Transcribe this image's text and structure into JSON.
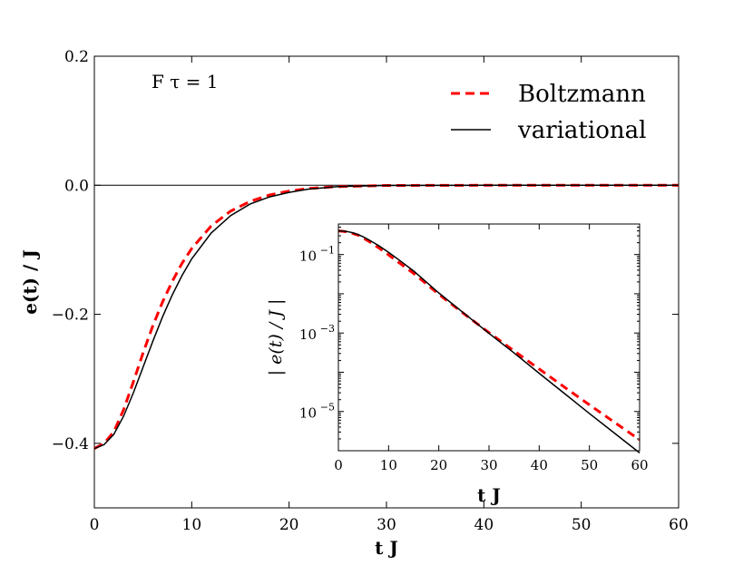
{
  "chart_data": [
    {
      "type": "line",
      "title": "",
      "annotation": "F τ = 1",
      "xlabel": "t J",
      "ylabel": "e(t) / J",
      "xlim": [
        0,
        60
      ],
      "ylim": [
        -0.5,
        0.2
      ],
      "xticks": [
        "0",
        "10",
        "20",
        "30",
        "40",
        "50",
        "60"
      ],
      "yticks": [
        "0.2",
        "0.0",
        "−0.2",
        "−0.4"
      ],
      "yticks_values": [
        0.2,
        0.0,
        -0.2,
        -0.4
      ],
      "reference_line_y": 0.0,
      "legend_position": "top-right",
      "grid": false,
      "series": [
        {
          "name": "Boltzmann",
          "style": "dashed",
          "color": "#ff0000",
          "x": [
            0,
            1,
            2,
            3,
            4,
            5,
            6,
            7,
            8,
            9,
            10,
            12,
            14,
            16,
            18,
            20,
            22,
            25,
            30,
            40,
            60
          ],
          "y": [
            -0.408,
            -0.4,
            -0.382,
            -0.348,
            -0.305,
            -0.26,
            -0.218,
            -0.181,
            -0.149,
            -0.121,
            -0.098,
            -0.063,
            -0.04,
            -0.025,
            -0.015,
            -0.009,
            -0.005,
            -0.002,
            -0.0003,
            0.0,
            0.0
          ]
        },
        {
          "name": "variational",
          "style": "solid",
          "color": "#000000",
          "x": [
            0,
            1,
            2,
            3,
            4,
            5,
            6,
            7,
            8,
            9,
            10,
            12,
            14,
            16,
            18,
            20,
            22,
            25,
            30,
            40,
            60
          ],
          "y": [
            -0.408,
            -0.402,
            -0.386,
            -0.358,
            -0.322,
            -0.282,
            -0.242,
            -0.204,
            -0.17,
            -0.14,
            -0.114,
            -0.074,
            -0.047,
            -0.029,
            -0.018,
            -0.011,
            -0.006,
            -0.002,
            -0.0003,
            0.0,
            0.0
          ]
        }
      ]
    },
    {
      "type": "line",
      "title": "",
      "xlabel": "t J",
      "ylabel": "| e(t) / J |",
      "xscale": "linear",
      "yscale": "log",
      "xlim": [
        0,
        60
      ],
      "ylim": [
        1e-06,
        0.6
      ],
      "xticks": [
        "0",
        "10",
        "20",
        "30",
        "40",
        "50",
        "60"
      ],
      "yticks": [
        "10",
        "10",
        "10"
      ],
      "yticks_exponents": [
        "−1",
        "−3",
        "−5"
      ],
      "yticks_values": [
        0.1,
        0.001,
        1e-05
      ],
      "grid": false,
      "series": [
        {
          "name": "Boltzmann",
          "style": "dashed",
          "color": "#ff0000",
          "x": [
            0,
            1,
            2,
            3,
            4,
            5,
            6,
            8,
            10,
            12,
            15,
            20,
            25,
            30,
            35,
            40,
            45,
            50,
            55,
            60
          ],
          "y": [
            0.4,
            0.39,
            0.37,
            0.34,
            0.31,
            0.26,
            0.22,
            0.149,
            0.098,
            0.063,
            0.033,
            0.0097,
            0.0031,
            0.00102,
            0.00035,
            0.000121,
            4.2e-05,
            1.48e-05,
            5.3e-06,
            1.9e-06
          ]
        },
        {
          "name": "variational",
          "style": "solid",
          "color": "#000000",
          "x": [
            0,
            1,
            2,
            3,
            4,
            5,
            6,
            8,
            10,
            12,
            15,
            20,
            25,
            30,
            35,
            40,
            45,
            50,
            55,
            60
          ],
          "y": [
            0.4,
            0.395,
            0.38,
            0.355,
            0.32,
            0.28,
            0.24,
            0.17,
            0.114,
            0.074,
            0.038,
            0.0105,
            0.0032,
            0.00098,
            0.00031,
            9.4e-05,
            2.9e-05,
            8.9e-06,
            2.8e-06,
            8.8e-07
          ]
        }
      ]
    }
  ]
}
